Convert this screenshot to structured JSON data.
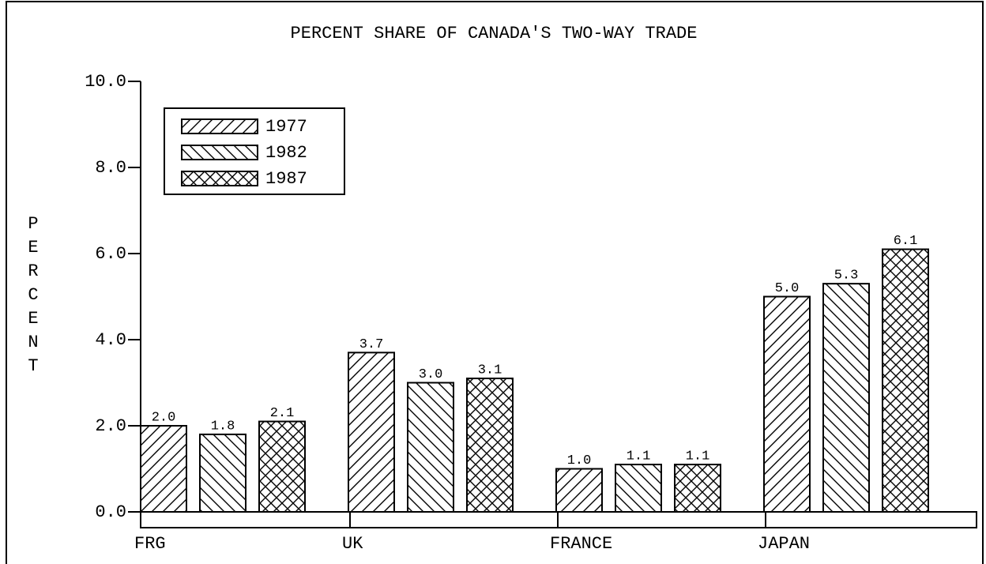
{
  "chart_data": {
    "type": "bar",
    "title": "PERCENT SHARE OF CANADA'S TWO-WAY TRADE",
    "y_label": "PERCENT",
    "categories": [
      "FRG",
      "UK",
      "FRANCE",
      "JAPAN"
    ],
    "series": [
      {
        "name": "1977",
        "color": "#000000",
        "pattern": "forward-hatch",
        "values": [
          2.0,
          3.7,
          1.0,
          5.0
        ],
        "value_labels": [
          "2.0",
          "3.7",
          "1.0",
          "5.0"
        ]
      },
      {
        "name": "1982",
        "color": "#000000",
        "pattern": "back-hatch",
        "values": [
          1.8,
          3.0,
          1.1,
          5.3
        ],
        "value_labels": [
          "1.8",
          "3.0",
          "1.1",
          "5.3"
        ]
      },
      {
        "name": "1987",
        "color": "#000000",
        "pattern": "cross-hatch",
        "values": [
          2.1,
          3.1,
          1.1,
          6.1
        ],
        "value_labels": [
          "2.1",
          "3.1",
          "1.1",
          "6.1"
        ]
      }
    ],
    "ylim": [
      0,
      10
    ],
    "yticks": [
      {
        "value": 0,
        "label": "0.0"
      },
      {
        "value": 2,
        "label": "2.0"
      },
      {
        "value": 4,
        "label": "4.0"
      },
      {
        "value": 6,
        "label": "6.0"
      },
      {
        "value": 8,
        "label": "8.0"
      },
      {
        "value": 10,
        "label": "10.0"
      }
    ],
    "legend": "upper-left"
  }
}
